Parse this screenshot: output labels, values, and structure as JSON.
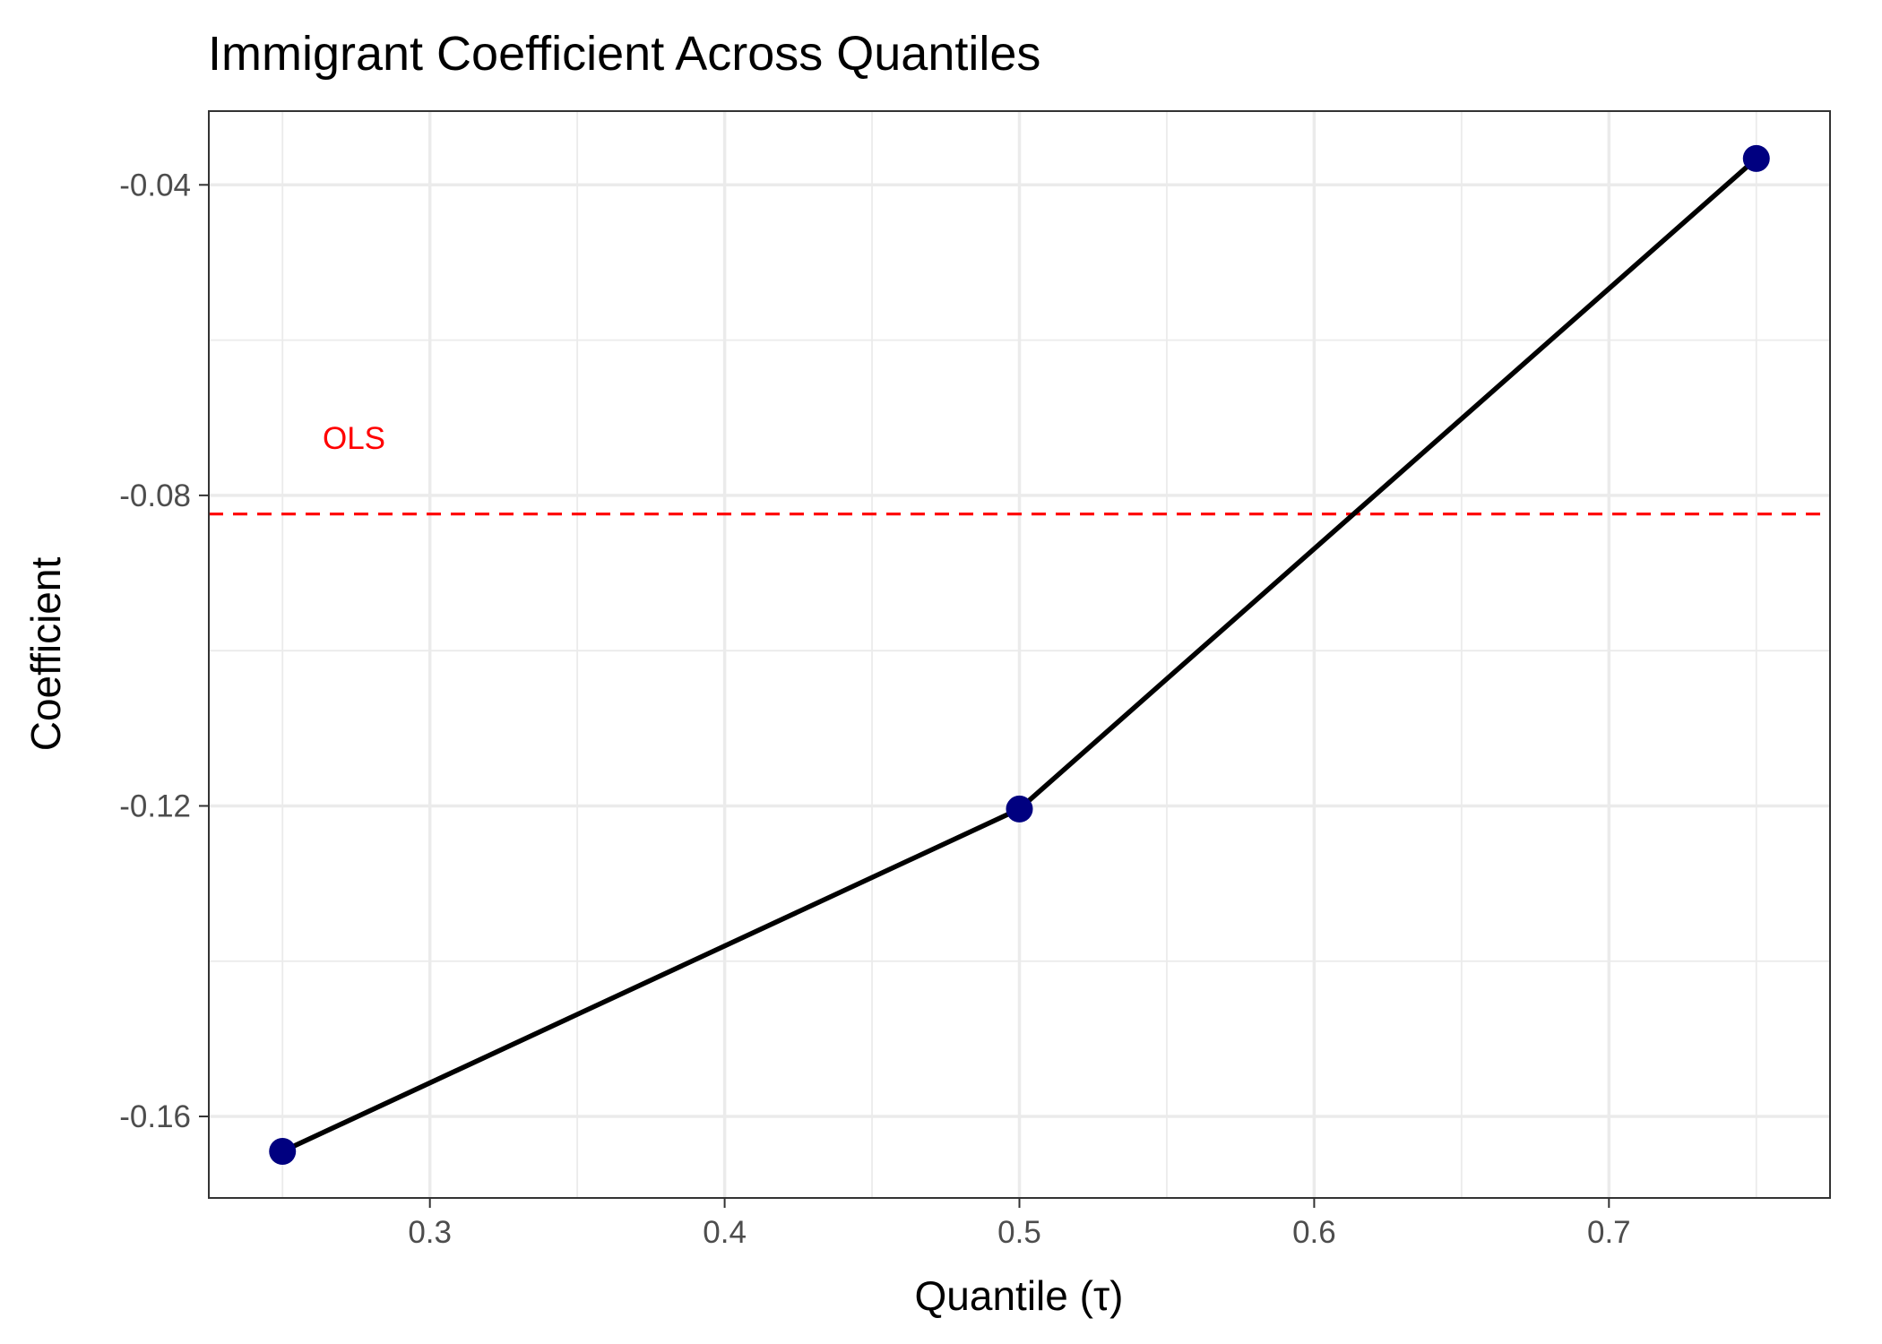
{
  "chart_data": {
    "type": "line",
    "title": "Immigrant Coefficient Across Quantiles",
    "xlabel": "Quantile (τ)",
    "ylabel": "Coefficient",
    "x": [
      0.25,
      0.5,
      0.75
    ],
    "series": [
      {
        "values": [
          -0.1645,
          -0.1204,
          -0.0366
        ]
      }
    ],
    "reference_line": {
      "label": "OLS",
      "y": -0.0824,
      "color": "#ff0000",
      "style": "dashed"
    },
    "xlim": [
      0.225,
      0.775
    ],
    "ylim": [
      -0.1705,
      -0.0305
    ],
    "x_major_ticks": [
      0.3,
      0.4,
      0.5,
      0.6,
      0.7
    ],
    "x_minor_ticks": [
      0.25,
      0.35,
      0.45,
      0.55,
      0.65,
      0.75
    ],
    "y_major_ticks": [
      -0.16,
      -0.12,
      -0.08,
      -0.04
    ],
    "y_minor_ticks": [
      -0.14,
      -0.1,
      -0.06
    ],
    "x_tick_labels": [
      "0.3",
      "0.4",
      "0.5",
      "0.6",
      "0.7"
    ],
    "y_tick_labels": [
      "-0.16",
      "-0.12",
      "-0.08",
      "-0.04"
    ],
    "grid": true,
    "line_color": "#000000",
    "point_color": "#000080"
  }
}
